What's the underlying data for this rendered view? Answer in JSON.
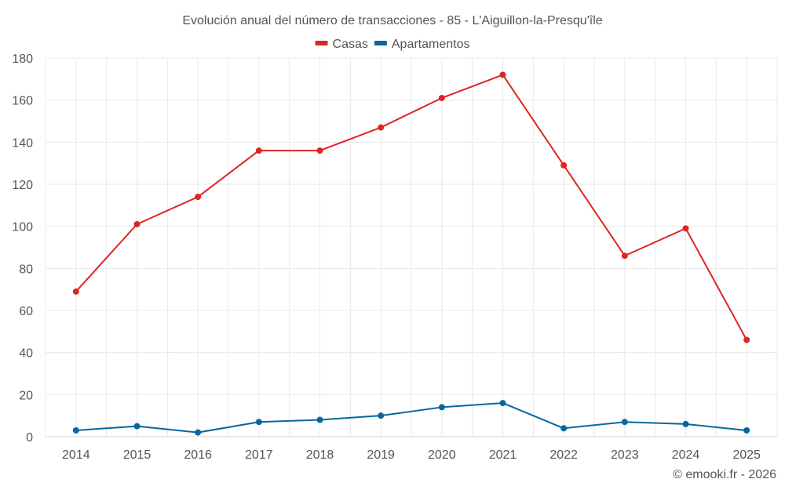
{
  "chart_data": {
    "type": "line",
    "title": "Evolución anual del número de transacciones - 85 - L'Aiguillon-la-Presqu'île",
    "xlabel": "",
    "ylabel": "",
    "categories": [
      "2014",
      "2015",
      "2016",
      "2017",
      "2018",
      "2019",
      "2020",
      "2021",
      "2022",
      "2023",
      "2024",
      "2025"
    ],
    "ylim": [
      0,
      180
    ],
    "yticks": [
      0,
      20,
      40,
      60,
      80,
      100,
      120,
      140,
      160,
      180
    ],
    "grid": true,
    "legend_position": "top-center",
    "series": [
      {
        "name": "Casas",
        "color": "#dd2525",
        "values": [
          69,
          101,
          114,
          136,
          136,
          147,
          161,
          172,
          129,
          86,
          99,
          46
        ]
      },
      {
        "name": "Apartamentos",
        "color": "#09669f",
        "values": [
          3,
          5,
          2,
          7,
          8,
          10,
          14,
          16,
          4,
          7,
          6,
          3
        ]
      }
    ],
    "credit": "© emooki.fr - 2026"
  }
}
